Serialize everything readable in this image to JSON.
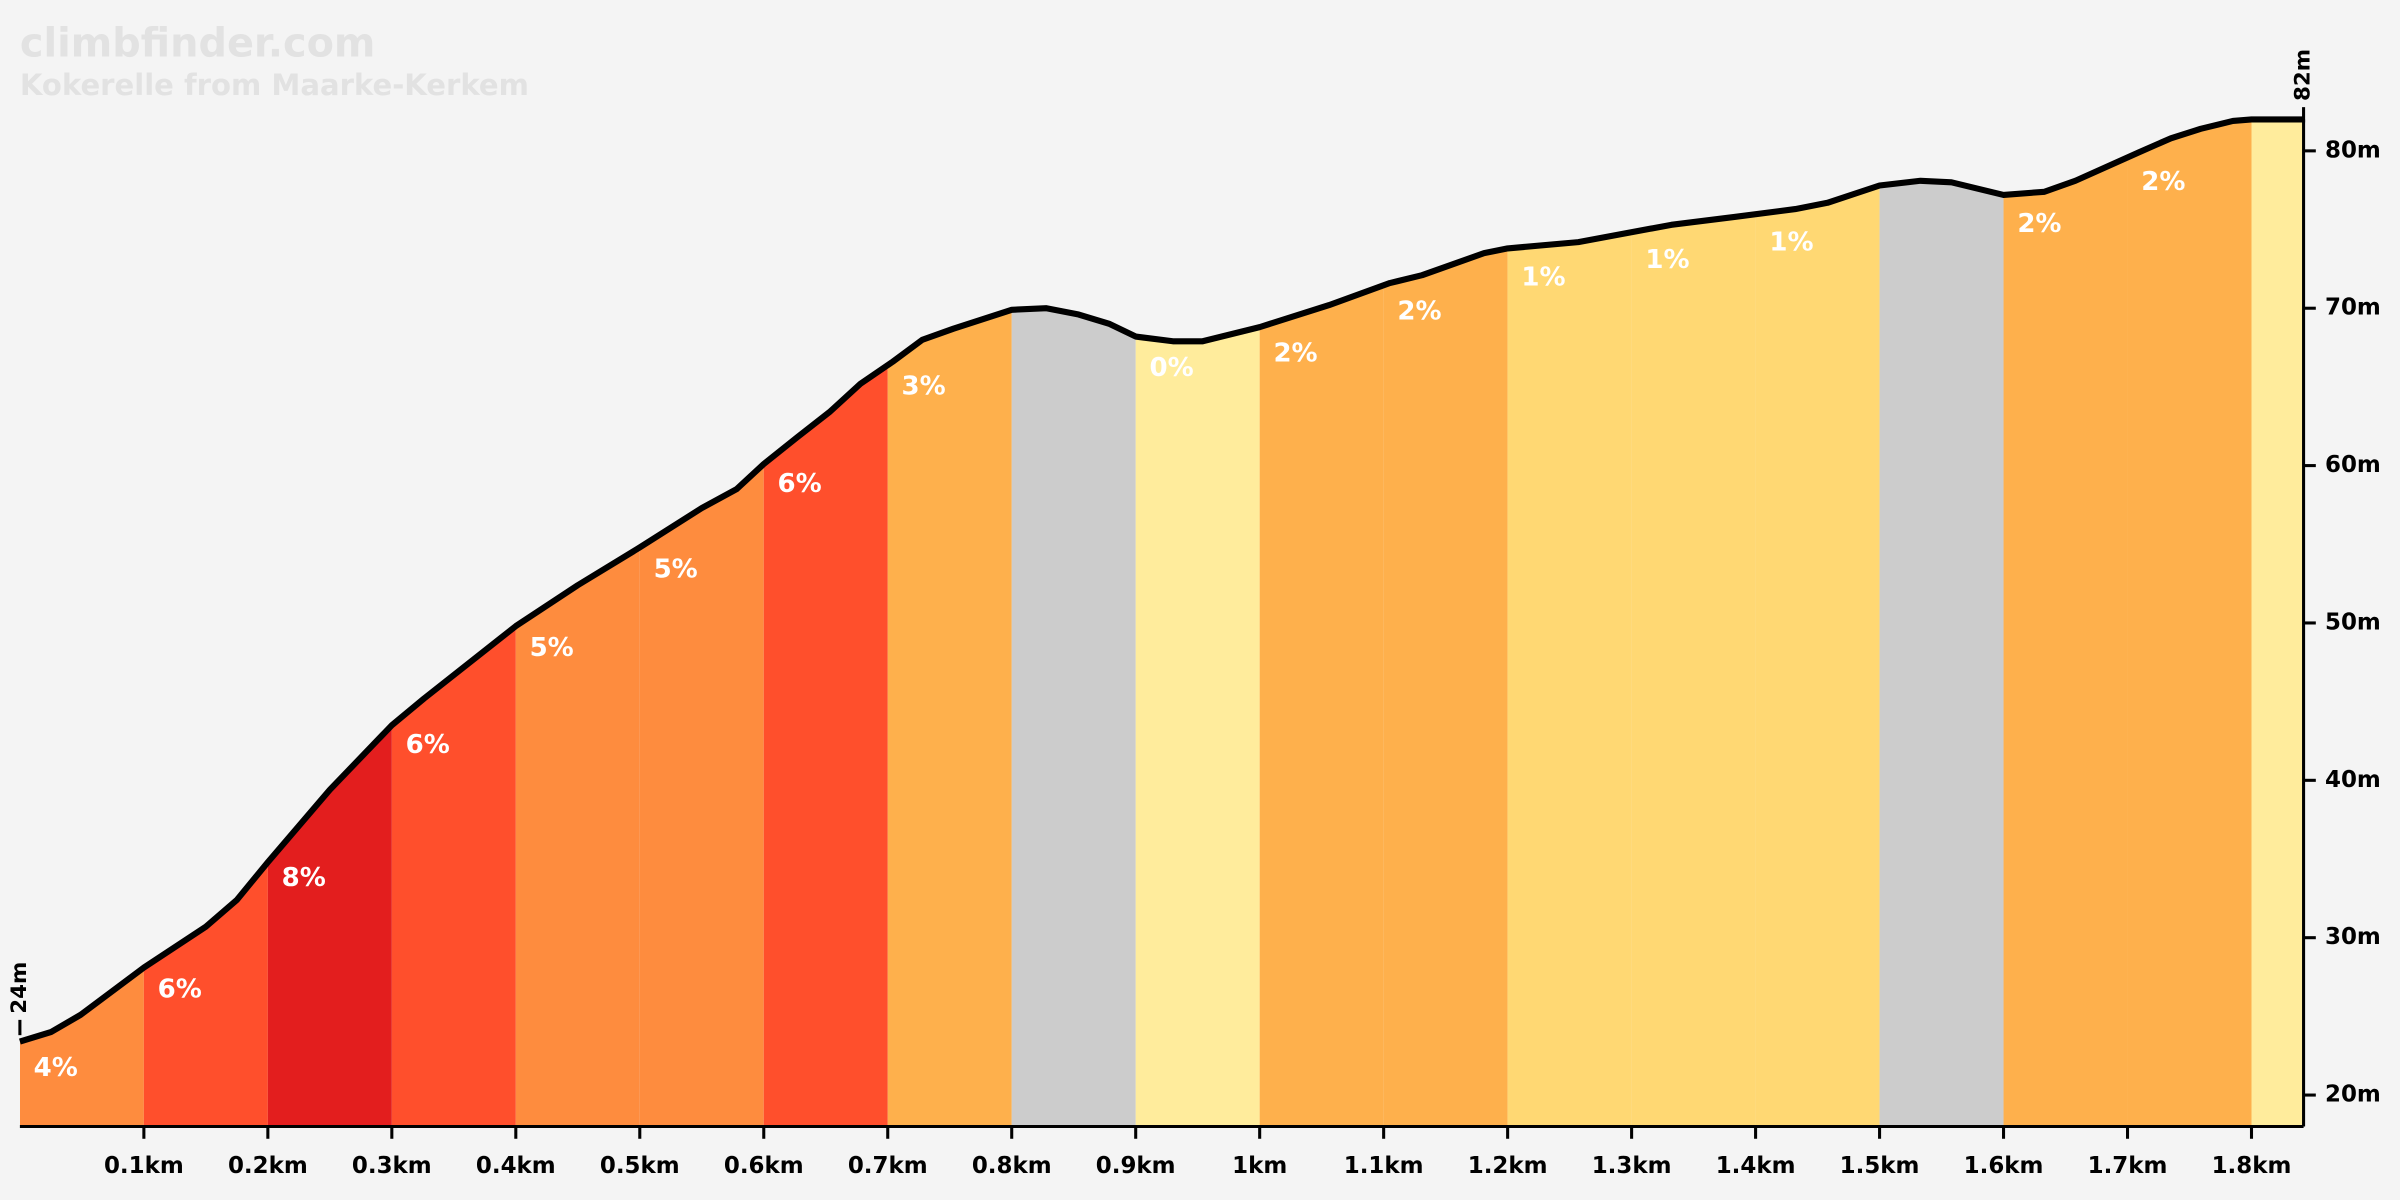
{
  "chart_data": {
    "type": "elevation_profile",
    "title": "climbfinder.com",
    "subtitle": "Kokerelle from Maarke-Kerkem",
    "x": [
      0,
      0.025,
      0.049,
      0.1,
      0.15,
      0.175,
      0.2,
      0.25,
      0.3,
      0.326,
      0.4,
      0.45,
      0.5,
      0.55,
      0.578,
      0.6,
      0.627,
      0.653,
      0.678,
      0.704,
      0.728,
      0.753,
      0.8,
      0.828,
      0.854,
      0.879,
      0.9,
      0.93,
      0.954,
      1.0,
      1.056,
      1.105,
      1.131,
      1.181,
      1.2,
      1.257,
      1.332,
      1.383,
      1.432,
      1.458,
      1.5,
      1.533,
      1.558,
      1.6,
      1.633,
      1.658,
      1.709,
      1.735,
      1.759,
      1.785,
      1.8,
      1.842
    ],
    "y": [
      23.4,
      24.0,
      25.1,
      28.1,
      30.7,
      32.4,
      34.8,
      39.4,
      43.5,
      45.2,
      49.8,
      52.4,
      54.8,
      57.3,
      58.5,
      60.1,
      61.8,
      63.4,
      65.2,
      66.6,
      68.0,
      68.7,
      69.9,
      70.0,
      69.6,
      69.0,
      68.2,
      67.9,
      67.9,
      68.8,
      70.2,
      71.6,
      72.1,
      73.5,
      73.8,
      74.2,
      75.3,
      75.8,
      76.3,
      76.7,
      77.8,
      78.1,
      78.0,
      77.2,
      77.4,
      78.1,
      79.9,
      80.8,
      81.4,
      81.9,
      82.0,
      82.0
    ],
    "segments": {
      "bounds": [
        0,
        0.1,
        0.2,
        0.3,
        0.4,
        0.5,
        0.6,
        0.7,
        0.8,
        0.9,
        1.0,
        1.1,
        1.2,
        1.3,
        1.4,
        1.5,
        1.6,
        1.7,
        1.8,
        1.842
      ],
      "values": [
        4,
        6,
        8,
        6,
        5,
        5,
        6,
        3,
        null,
        0,
        2,
        2,
        1,
        1,
        1,
        null,
        2,
        2,
        null
      ],
      "value_labels": [
        "4%",
        "6%",
        "8%",
        "6%",
        "5%",
        "5%",
        "6%",
        "3%",
        null,
        "0%",
        "2%",
        "2%",
        "1%",
        "1%",
        "1%",
        null,
        "2%",
        "2%",
        null
      ],
      "colors": [
        "#fe8c3e",
        "#ff4f2c",
        "#e31e1e",
        "#ff4f2c",
        "#fe8c3e",
        "#fe8c3e",
        "#ff4f2c",
        "#feb04c",
        "#cccccc",
        "#ffec9c",
        "#feb04c",
        "#feb04c",
        "#ffd873",
        "#ffd873",
        "#ffd873",
        "#cccccc",
        "#feb04c",
        "#feb04c",
        "#ffec9c"
      ]
    },
    "xlim": [
      0,
      1.842
    ],
    "ylim": [
      18,
      82
    ],
    "xticks": [
      {
        "value": 0.1,
        "label": "0.1km"
      },
      {
        "value": 0.2,
        "label": "0.2km"
      },
      {
        "value": 0.3,
        "label": "0.3km"
      },
      {
        "value": 0.4,
        "label": "0.4km"
      },
      {
        "value": 0.5,
        "label": "0.5km"
      },
      {
        "value": 0.6,
        "label": "0.6km"
      },
      {
        "value": 0.7,
        "label": "0.7km"
      },
      {
        "value": 0.8,
        "label": "0.8km"
      },
      {
        "value": 0.9,
        "label": "0.9km"
      },
      {
        "value": 1,
        "label": "1km"
      },
      {
        "value": 1.1,
        "label": "1.1km"
      },
      {
        "value": 1.2,
        "label": "1.2km"
      },
      {
        "value": 1.3,
        "label": "1.3km"
      },
      {
        "value": 1.4,
        "label": "1.4km"
      },
      {
        "value": 1.5,
        "label": "1.5km"
      },
      {
        "value": 1.6,
        "label": "1.6km"
      },
      {
        "value": 1.7,
        "label": "1.7km"
      },
      {
        "value": 1.8,
        "label": "1.8km"
      }
    ],
    "yticks": [
      {
        "value": 20,
        "label": "20m"
      },
      {
        "value": 30,
        "label": "30m"
      },
      {
        "value": 40,
        "label": "40m"
      },
      {
        "value": 50,
        "label": "50m"
      },
      {
        "value": 60,
        "label": "60m"
      },
      {
        "value": 70,
        "label": "70m"
      },
      {
        "value": 80,
        "label": "80m"
      }
    ],
    "annotations": [
      {
        "x": 0,
        "y": 24,
        "label": "24m"
      },
      {
        "x": 1.842,
        "y": 82,
        "label": "82m"
      }
    ]
  }
}
